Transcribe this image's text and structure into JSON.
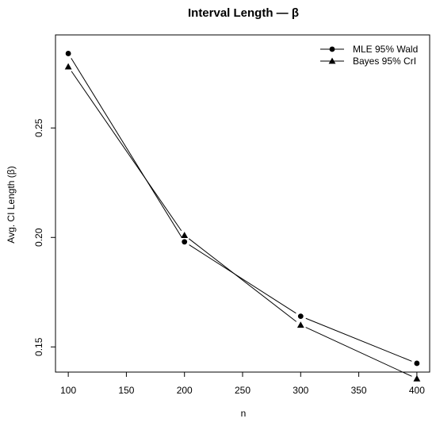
{
  "chart_data": {
    "type": "line",
    "title": "Interval Length — β",
    "xlabel": "n",
    "ylabel": "Avg. CI Length (β)",
    "x": [
      100,
      200,
      300,
      400
    ],
    "xlim": [
      89,
      411
    ],
    "ylim": [
      0.1385,
      0.2925
    ],
    "xticks": [
      100,
      150,
      200,
      250,
      300,
      350,
      400
    ],
    "yticks": [
      0.15,
      0.2,
      0.25
    ],
    "ytick_labels": [
      "0.15",
      "0.20",
      "0.25"
    ],
    "legend_position": "top-right",
    "grid": false,
    "series": [
      {
        "name": "MLE 95% Wald",
        "marker": "circle",
        "values": [
          0.284,
          0.198,
          0.164,
          0.1425
        ]
      },
      {
        "name": "Bayes 95% CrI",
        "marker": "triangle",
        "values": [
          0.278,
          0.201,
          0.16,
          0.1355
        ]
      }
    ]
  }
}
